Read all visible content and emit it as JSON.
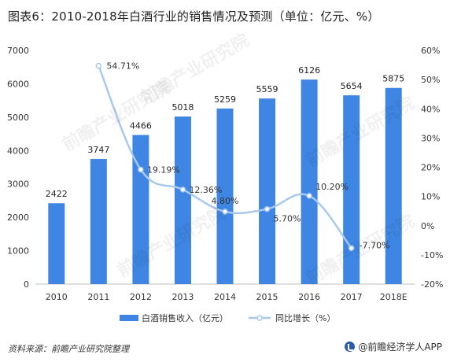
{
  "title": "图表6：2010-2018年白酒行业的销售情况及预测（单位：亿元、%）",
  "chart_data": {
    "type": "bar+line",
    "categories": [
      "2010",
      "2011",
      "2012",
      "2013",
      "2014",
      "2015",
      "2016",
      "2017",
      "2018E"
    ],
    "series": [
      {
        "name": "白酒销售收入（亿元）",
        "type": "bar",
        "axis": "left",
        "values": [
          2422,
          3747,
          4466,
          5018,
          5259,
          5559,
          6126,
          5654,
          5875
        ],
        "labels": [
          "2422",
          "3747",
          "4466",
          "5018",
          "5259",
          "5559",
          "6126",
          "5654",
          "5875"
        ],
        "color": "#3f86e4"
      },
      {
        "name": "同比增长（%）",
        "type": "line",
        "axis": "right",
        "values": [
          null,
          54.71,
          19.19,
          12.36,
          4.8,
          5.7,
          10.2,
          -7.7,
          null
        ],
        "labels": [
          null,
          "54.71%",
          "19.19%",
          "12.36%",
          "4.80%",
          "5.70%",
          "10.20%",
          "-7.70%",
          null
        ],
        "color": "#a9c8ee"
      }
    ],
    "y_left": {
      "min": 0,
      "max": 7000,
      "ticks": [
        "0",
        "1000",
        "2000",
        "3000",
        "4000",
        "5000",
        "6000",
        "7000"
      ]
    },
    "y_right": {
      "min": -20,
      "max": 60,
      "ticks": [
        "-20%",
        "-10%",
        "0%",
        "10%",
        "20%",
        "30%",
        "40%",
        "50%",
        "60%"
      ]
    },
    "legend_position": "bottom",
    "grid": false
  },
  "footer": {
    "source": "资料来源：前瞻产业研究院整理",
    "brand": "@前瞻经济学人APP"
  },
  "watermark_text": "前瞻产业研究院"
}
